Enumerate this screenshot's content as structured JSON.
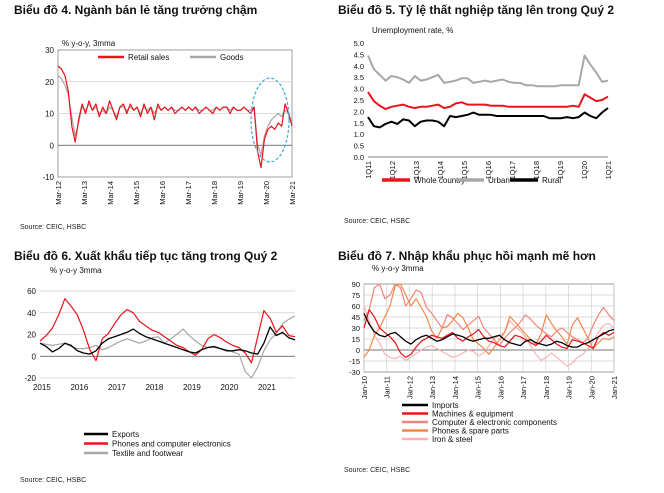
{
  "colors": {
    "red": "#e8141b",
    "gray": "#a7a7a7",
    "black": "#000000",
    "salmon": "#f4837c",
    "orange": "#f0894a",
    "pink": "#f7b5b0",
    "cyan": "#39a9d9",
    "grid": "#cfcfcf"
  },
  "chart_data": [
    {
      "type": "line",
      "title": "Biểu đồ 4. Ngành bán lẻ tăng trưởng chậm",
      "ylabel": "% y-o-y, 3mma",
      "ylim": [
        -10,
        30
      ],
      "yticks": [
        "-10",
        "0",
        "10",
        "20",
        "30"
      ],
      "xticks": [
        "Mar-12",
        "Mar-13",
        "Mar-14",
        "Mar-15",
        "Mar-16",
        "Mar-17",
        "Mar-18",
        "Mar-19",
        "Mar-20",
        "Mar-21"
      ],
      "annotation": "dashed-ellipse-highlight",
      "source": "Source: CEIC, HSBC",
      "series": [
        {
          "name": "Retail sales",
          "color": "red",
          "values": [
            25,
            24,
            22,
            17,
            6,
            1,
            8,
            13,
            10,
            14,
            11,
            13,
            9,
            12,
            10,
            14,
            11,
            8,
            12,
            13,
            10,
            13,
            11,
            12,
            9,
            13,
            10,
            12,
            8,
            13,
            11,
            12,
            11,
            12,
            10,
            11,
            12,
            11,
            12,
            11,
            12,
            10,
            11,
            12,
            11,
            10,
            12,
            11,
            12,
            12,
            10,
            12,
            11,
            11,
            12,
            11,
            10,
            12,
            -2,
            -7,
            2,
            5,
            6,
            5,
            7,
            6,
            13,
            10,
            6
          ]
        },
        {
          "name": "Goods",
          "color": "gray",
          "values": [
            22,
            21,
            19,
            16,
            9,
            3,
            7,
            12,
            11,
            13,
            11,
            12,
            10,
            11,
            10,
            12,
            11,
            9,
            12,
            12,
            11,
            12,
            11,
            12,
            10,
            12,
            11,
            12,
            10,
            12,
            11,
            12,
            11,
            12,
            11,
            11,
            12,
            11,
            12,
            11,
            12,
            11,
            11,
            12,
            11,
            11,
            12,
            11,
            12,
            12,
            11,
            12,
            11,
            11,
            12,
            11,
            11,
            12,
            0,
            -3,
            3,
            6,
            8,
            9,
            10,
            9,
            11,
            10,
            7
          ]
        }
      ]
    },
    {
      "type": "line",
      "title": "Biểu đồ 5. Tỷ lệ thất nghiệp tăng lên trong Quý 2",
      "ylabel": "Unemployment  rate, %",
      "ylim": [
        0,
        5
      ],
      "yticks": [
        "0.0",
        "0.5",
        "1.0",
        "1.5",
        "2.0",
        "2.5",
        "3.0",
        "3.5",
        "4.0",
        "4.5",
        "5.0"
      ],
      "xticks": [
        "1Q11",
        "1Q12",
        "1Q13",
        "1Q14",
        "1Q15",
        "1Q16",
        "1Q17",
        "1Q18",
        "1Q19",
        "1Q20",
        "1Q21"
      ],
      "source": "Source: CEIC, HSBC",
      "series": [
        {
          "name": "Whole country",
          "color": "red",
          "values": [
            2.85,
            2.45,
            2.25,
            2.1,
            2.2,
            2.25,
            2.3,
            2.2,
            2.15,
            2.2,
            2.2,
            2.25,
            2.3,
            2.15,
            2.2,
            2.35,
            2.4,
            2.3,
            2.3,
            2.3,
            2.3,
            2.25,
            2.25,
            2.25,
            2.2,
            2.2,
            2.2,
            2.2,
            2.2,
            2.2,
            2.2,
            2.2,
            2.2,
            2.2,
            2.2,
            2.25,
            2.2,
            2.75,
            2.6,
            2.45,
            2.5,
            2.65
          ]
        },
        {
          "name": "Urban",
          "color": "gray",
          "values": [
            4.45,
            3.85,
            3.6,
            3.35,
            3.55,
            3.5,
            3.4,
            3.25,
            3.55,
            3.35,
            3.4,
            3.5,
            3.6,
            3.25,
            3.3,
            3.35,
            3.45,
            3.45,
            3.25,
            3.3,
            3.35,
            3.3,
            3.35,
            3.4,
            3.3,
            3.25,
            3.25,
            3.15,
            3.15,
            3.1,
            3.1,
            3.1,
            3.1,
            3.15,
            3.15,
            3.15,
            3.15,
            4.45,
            4.05,
            3.7,
            3.3,
            3.35
          ]
        },
        {
          "name": "Rural",
          "color": "black",
          "values": [
            1.75,
            1.35,
            1.3,
            1.45,
            1.55,
            1.45,
            1.65,
            1.6,
            1.35,
            1.55,
            1.6,
            1.6,
            1.55,
            1.35,
            1.8,
            1.75,
            1.8,
            1.85,
            1.95,
            1.85,
            1.85,
            1.85,
            1.8,
            1.8,
            1.8,
            1.8,
            1.8,
            1.8,
            1.8,
            1.8,
            1.8,
            1.7,
            1.7,
            1.7,
            1.75,
            1.7,
            1.75,
            1.95,
            1.8,
            1.7,
            1.95,
            2.15
          ]
        }
      ]
    },
    {
      "type": "line",
      "title": "Biểu đồ 6. Xuất khẩu tiếp tục tăng trong Quý 2",
      "ylabel": "% y-o-y 3mma",
      "ylim": [
        -20,
        60
      ],
      "yticks": [
        "-20",
        "0",
        "20",
        "40",
        "60"
      ],
      "xticks": [
        "2015",
        "2016",
        "2017",
        "2018",
        "2019",
        "2020",
        "2021"
      ],
      "source": "Source: CEIC, HSBC",
      "series": [
        {
          "name": "Exports",
          "color": "black",
          "values": [
            12,
            9,
            4,
            7,
            12,
            10,
            5,
            3,
            2,
            5,
            12,
            16,
            18,
            20,
            22,
            25,
            21,
            18,
            16,
            14,
            12,
            10,
            8,
            6,
            4,
            3,
            6,
            8,
            9,
            7,
            5,
            5,
            6,
            5,
            3,
            2,
            12,
            27,
            19,
            22,
            17,
            15
          ]
        },
        {
          "name": "Phones and computer electronics",
          "color": "red",
          "values": [
            14,
            19,
            26,
            38,
            53,
            46,
            38,
            24,
            6,
            -4,
            16,
            21,
            30,
            38,
            43,
            40,
            32,
            28,
            24,
            22,
            18,
            14,
            10,
            8,
            4,
            1,
            6,
            16,
            20,
            17,
            13,
            10,
            8,
            3,
            -6,
            18,
            42,
            35,
            22,
            28,
            19,
            18
          ]
        },
        {
          "name": "Textile and footwear",
          "color": "gray",
          "values": [
            12,
            11,
            10,
            11,
            12,
            9,
            7,
            7,
            8,
            10,
            6,
            8,
            11,
            14,
            16,
            14,
            12,
            14,
            17,
            18,
            12,
            16,
            20,
            25,
            19,
            14,
            10,
            8,
            8,
            7,
            6,
            4,
            2,
            -14,
            -20,
            -10,
            5,
            15,
            21,
            30,
            34,
            37
          ]
        }
      ]
    },
    {
      "type": "line",
      "title": "Biểu đồ 7. Nhập khẩu phục hồi mạnh mẽ hơn",
      "ylabel": "% y-o-y 3mma",
      "ylim": [
        -30,
        90
      ],
      "yticks": [
        "-30",
        "-15",
        "0",
        "15",
        "30",
        "45",
        "60",
        "75",
        "90"
      ],
      "xticks": [
        "Jan-10",
        "Jan-11",
        "Jan-12",
        "Jan-13",
        "Jan-14",
        "Jan-15",
        "Jan-16",
        "Jan-17",
        "Jan-18",
        "Jan-19",
        "Jan-20",
        "Jan-21"
      ],
      "source": "Source: CEIC, HSBC",
      "series": [
        {
          "name": "Imports",
          "color": "black",
          "values": [
            50,
            35,
            25,
            20,
            18,
            22,
            24,
            18,
            12,
            8,
            14,
            18,
            20,
            16,
            12,
            14,
            18,
            22,
            20,
            18,
            14,
            12,
            14,
            16,
            16,
            18,
            20,
            14,
            10,
            8,
            6,
            12,
            14,
            10,
            8,
            6,
            8,
            12,
            10,
            6,
            4,
            4,
            8,
            10,
            14,
            18,
            22,
            26,
            28
          ]
        },
        {
          "name": "Machines & equipment",
          "color": "red",
          "values": [
            30,
            55,
            45,
            30,
            24,
            18,
            10,
            -4,
            -10,
            -6,
            4,
            12,
            16,
            20,
            18,
            16,
            20,
            24,
            16,
            12,
            18,
            22,
            28,
            18,
            12,
            10,
            6,
            4,
            12,
            20,
            18,
            14,
            10,
            6,
            12,
            20,
            14,
            8,
            4,
            2,
            14,
            12,
            10,
            6,
            2,
            18,
            24,
            20,
            24
          ]
        },
        {
          "name": "Computer & electronic components",
          "color": "salmon",
          "values": [
            40,
            55,
            85,
            90,
            70,
            75,
            95,
            85,
            60,
            70,
            82,
            78,
            58,
            50,
            40,
            30,
            48,
            44,
            36,
            28,
            34,
            40,
            46,
            30,
            22,
            14,
            6,
            16,
            24,
            30,
            38,
            48,
            42,
            34,
            28,
            22,
            18,
            26,
            30,
            24,
            18,
            14,
            10,
            16,
            34,
            48,
            58,
            48,
            40
          ]
        },
        {
          "name": "Phones & spare parts",
          "color": "orange",
          "values": [
            -10,
            0,
            20,
            30,
            45,
            60,
            88,
            90,
            75,
            60,
            70,
            58,
            45,
            26,
            16,
            30,
            32,
            40,
            50,
            44,
            30,
            14,
            8,
            2,
            -6,
            4,
            14,
            24,
            46,
            38,
            30,
            22,
            14,
            8,
            22,
            48,
            36,
            26,
            18,
            8,
            34,
            44,
            30,
            16,
            2,
            10,
            16,
            14,
            18
          ]
        },
        {
          "name": "Iron & steel",
          "color": "pink",
          "values": [
            60,
            40,
            20,
            10,
            -6,
            -10,
            -12,
            -8,
            -14,
            -10,
            -5,
            0,
            4,
            6,
            2,
            -2,
            -6,
            -10,
            -8,
            -4,
            0,
            -2,
            -8,
            -4,
            6,
            16,
            20,
            24,
            40,
            32,
            26,
            18,
            6,
            -6,
            -14,
            -10,
            -4,
            -10,
            -16,
            -22,
            -18,
            -10,
            -6,
            2,
            12,
            24,
            34,
            36,
            30
          ]
        }
      ]
    }
  ]
}
